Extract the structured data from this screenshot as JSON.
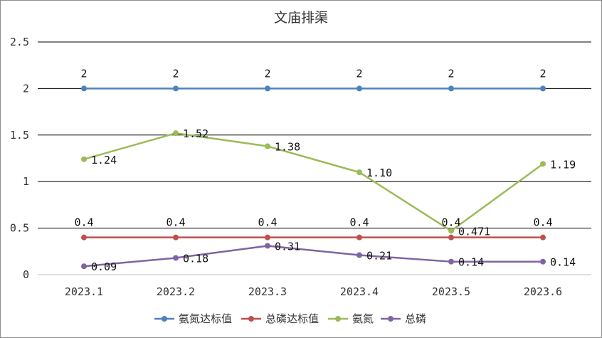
{
  "chart_data": {
    "type": "line",
    "title": "文庙排渠",
    "categories": [
      "2023.1",
      "2023.2",
      "2023.3",
      "2023.4",
      "2023.5",
      "2023.6"
    ],
    "ylim": [
      0,
      2.5
    ],
    "yticks": [
      "0",
      "0.5",
      "1",
      "1.5",
      "2",
      "2.5"
    ],
    "grid": true,
    "legend_position": "bottom",
    "series": [
      {
        "name": "氨氮达标值",
        "color": "#4f81bd",
        "values": [
          2,
          2,
          2,
          2,
          2,
          2
        ],
        "labels": [
          "2",
          "2",
          "2",
          "2",
          "2",
          "2"
        ]
      },
      {
        "name": "总磷达标值",
        "color": "#c0504d",
        "values": [
          0.4,
          0.4,
          0.4,
          0.4,
          0.4,
          0.4
        ],
        "labels": [
          "0.4",
          "0.4",
          "0.4",
          "0.4",
          "0.4",
          "0.4"
        ]
      },
      {
        "name": "氨氮",
        "color": "#9bbb59",
        "values": [
          1.24,
          1.52,
          1.38,
          1.1,
          0.471,
          1.19
        ],
        "labels": [
          "1.24",
          "1.52",
          "1.38",
          "1.10",
          "0.471",
          "1.19"
        ]
      },
      {
        "name": "总磷",
        "color": "#8064a2",
        "values": [
          0.09,
          0.18,
          0.31,
          0.21,
          0.14,
          0.14
        ],
        "labels": [
          "0.09",
          "0.18",
          "0.31",
          "0.21",
          "0.14",
          "0.14"
        ]
      }
    ]
  }
}
